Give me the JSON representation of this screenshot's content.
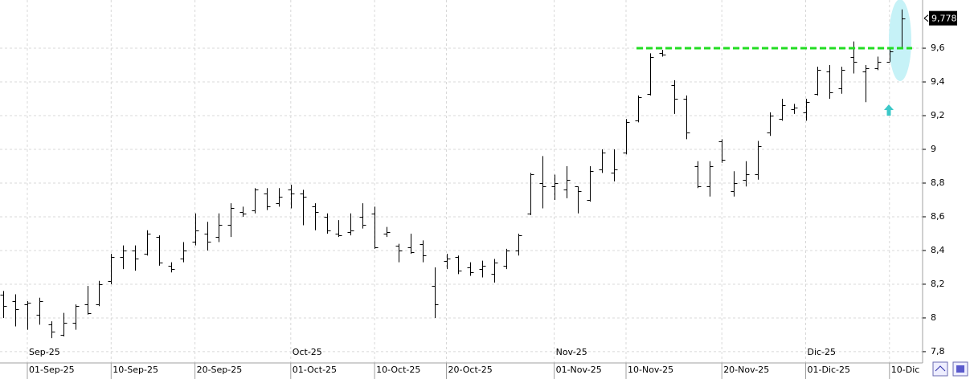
{
  "chart_data": {
    "type": "ohlc",
    "categories": [
      null,
      null,
      "01-Sep-25",
      null,
      null,
      null,
      null,
      null,
      null,
      "10-Sep-25",
      null,
      null,
      null,
      null,
      null,
      null,
      "20-Sep-25",
      null,
      null,
      null,
      null,
      null,
      null,
      null,
      "01-Oct-25",
      null,
      null,
      null,
      null,
      null,
      null,
      "10-Oct-25",
      null,
      null,
      null,
      null,
      null,
      "20-Oct-25",
      null,
      null,
      null,
      null,
      null,
      null,
      null,
      null,
      "01-Nov-25",
      null,
      null,
      null,
      null,
      null,
      "10-Nov-25",
      null,
      null,
      null,
      null,
      null,
      null,
      null,
      "20-Nov-25",
      null,
      null,
      null,
      null,
      null,
      null,
      "01-Dic-25",
      null,
      null,
      null,
      null,
      null,
      null,
      "10-Dic",
      null
    ],
    "months": [
      null,
      null,
      "Sep-25",
      null,
      null,
      null,
      null,
      null,
      null,
      null,
      null,
      null,
      null,
      null,
      null,
      null,
      null,
      null,
      null,
      null,
      null,
      null,
      null,
      null,
      "Oct-25",
      null,
      null,
      null,
      null,
      null,
      null,
      null,
      null,
      null,
      null,
      null,
      null,
      null,
      null,
      null,
      null,
      null,
      null,
      null,
      null,
      null,
      "Nov-25",
      null,
      null,
      null,
      null,
      null,
      null,
      null,
      null,
      null,
      null,
      null,
      null,
      null,
      null,
      null,
      null,
      null,
      null,
      null,
      null,
      "Dic-25",
      null,
      null,
      null,
      null,
      null,
      null,
      null,
      null
    ],
    "open": [
      8.14,
      8.1,
      8.08,
      8.02,
      7.96,
      7.9,
      7.97,
      8.08,
      8.08,
      8.22,
      8.36,
      8.4,
      8.38,
      8.48,
      8.31,
      8.35,
      8.45,
      8.5,
      8.48,
      8.55,
      8.63,
      8.64,
      8.74,
      8.68,
      8.76,
      8.74,
      8.66,
      8.6,
      8.5,
      8.51,
      8.6,
      8.62,
      8.5,
      8.43,
      8.42,
      8.44,
      8.19,
      8.34,
      8.36,
      8.3,
      8.29,
      8.26,
      8.31,
      8.4,
      8.62,
      8.8,
      8.78,
      8.76,
      8.78,
      8.7,
      8.88,
      8.86,
      8.98,
      9.17,
      9.33,
      9.57,
      9.38,
      9.3,
      8.9,
      8.78,
      9.05,
      8.75,
      8.82,
      8.85,
      9.1,
      9.18,
      9.24,
      9.22,
      9.33,
      9.46,
      9.36,
      9.55,
      9.46,
      9.48,
      9.52,
      9.6
    ],
    "high": [
      8.16,
      8.14,
      8.1,
      8.12,
      7.98,
      8.03,
      8.08,
      8.19,
      8.22,
      8.38,
      8.43,
      8.43,
      8.52,
      8.49,
      8.33,
      8.45,
      8.62,
      8.57,
      8.62,
      8.68,
      8.66,
      8.77,
      8.77,
      8.77,
      8.79,
      8.76,
      8.68,
      8.62,
      8.58,
      8.62,
      8.68,
      8.66,
      8.54,
      8.44,
      8.5,
      8.46,
      8.3,
      8.38,
      8.37,
      8.33,
      8.34,
      8.35,
      8.41,
      8.5,
      8.86,
      8.96,
      8.85,
      8.9,
      8.78,
      8.9,
      9.0,
      9.0,
      9.18,
      9.32,
      9.57,
      9.59,
      9.41,
      9.32,
      8.93,
      8.93,
      9.06,
      8.87,
      8.93,
      9.05,
      9.22,
      9.3,
      9.27,
      9.3,
      9.49,
      9.5,
      9.49,
      9.64,
      9.5,
      9.55,
      9.6,
      9.83
    ],
    "low": [
      8.0,
      7.95,
      7.93,
      7.96,
      7.88,
      7.89,
      7.93,
      8.02,
      8.07,
      8.2,
      8.29,
      8.28,
      8.37,
      8.31,
      8.27,
      8.33,
      8.43,
      8.4,
      8.45,
      8.48,
      8.6,
      8.62,
      8.64,
      8.66,
      8.65,
      8.55,
      8.52,
      8.5,
      8.48,
      8.49,
      8.53,
      8.41,
      8.48,
      8.33,
      8.38,
      8.33,
      8.0,
      8.29,
      8.26,
      8.25,
      8.24,
      8.21,
      8.29,
      8.37,
      8.61,
      8.65,
      8.7,
      8.71,
      8.62,
      8.69,
      8.86,
      8.81,
      8.97,
      9.16,
      9.32,
      9.55,
      9.21,
      9.06,
      8.77,
      8.72,
      8.92,
      8.72,
      8.78,
      8.82,
      9.08,
      9.17,
      9.21,
      9.17,
      9.32,
      9.3,
      9.33,
      9.45,
      9.28,
      9.47,
      9.52,
      9.6
    ],
    "close": [
      8.07,
      8.05,
      8.09,
      8.1,
      7.92,
      7.97,
      8.07,
      8.03,
      8.2,
      8.36,
      8.4,
      8.35,
      8.5,
      8.33,
      8.29,
      8.4,
      8.52,
      8.45,
      8.55,
      8.65,
      8.62,
      8.76,
      8.66,
      8.72,
      8.74,
      8.72,
      8.63,
      8.52,
      8.49,
      8.52,
      8.55,
      8.42,
      8.51,
      8.4,
      8.39,
      8.37,
      8.08,
      8.35,
      8.28,
      8.27,
      8.31,
      8.33,
      8.4,
      8.49,
      8.85,
      8.78,
      8.8,
      8.82,
      8.75,
      8.87,
      8.98,
      8.88,
      9.16,
      9.31,
      9.55,
      9.56,
      9.3,
      9.1,
      8.78,
      8.9,
      8.94,
      8.8,
      8.85,
      9.02,
      9.2,
      9.26,
      9.25,
      9.28,
      9.47,
      9.34,
      9.47,
      9.52,
      9.48,
      9.52,
      9.58,
      9.778
    ],
    "color": "#000000",
    "ylim": [
      7.733,
      9.886
    ],
    "yticks": [
      {
        "value": 7.8,
        "label": "7,8"
      },
      8,
      {
        "value": 8.2,
        "label": "8,2"
      },
      {
        "value": 8.4,
        "label": "8,4"
      },
      {
        "value": 8.6,
        "label": "8,6"
      },
      {
        "value": 8.8,
        "label": "8,8"
      },
      9,
      {
        "value": 9.2,
        "label": "9,2"
      },
      {
        "value": 9.4,
        "label": "9,4"
      },
      {
        "value": 9.6,
        "label": "9,6"
      }
    ],
    "grid": true,
    "last_price": {
      "value": 9.778,
      "label": "9,778"
    },
    "resistance": {
      "value": 9.6,
      "color": "#22dd22"
    }
  }
}
